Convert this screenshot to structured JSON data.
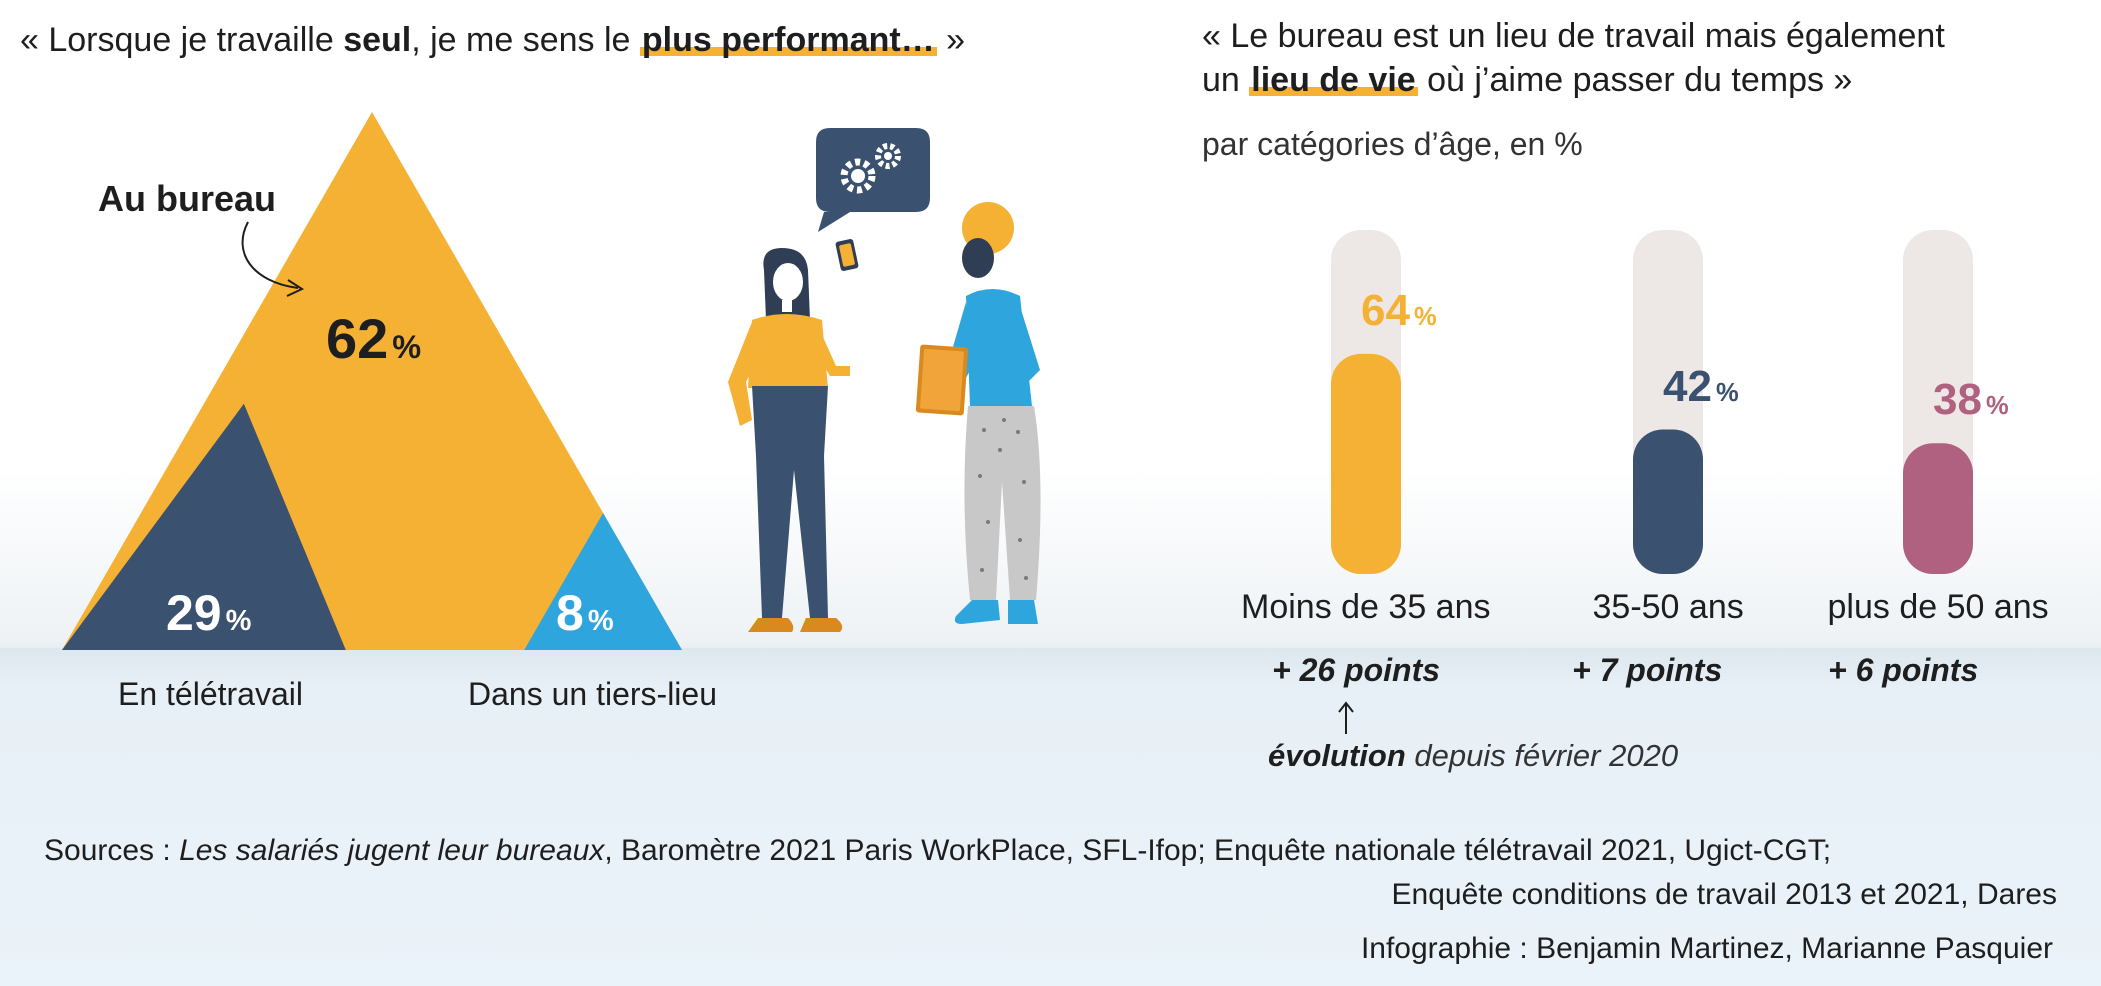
{
  "left_panel": {
    "quote_open": "« Lorsque je travaille ",
    "quote_bold": "seul",
    "quote_mid": ", je me sens le ",
    "quote_highlight": "plus performant…",
    "quote_close": " »",
    "callout_label": "Au bureau",
    "label_left": "En télétravail",
    "label_right": "Dans un tiers-lieu"
  },
  "right_panel": {
    "quote_line1": "« Le bureau est un lieu de travail mais également",
    "quote_line2_pre": "un ",
    "quote_line2_highlight": "lieu de vie",
    "quote_line2_post": " où j’aime passer du temps »",
    "subtitle": "par catégories d’âge, en %",
    "note_bold": "évolution",
    "note_rest": " depuis février 2020"
  },
  "chart_data": [
    {
      "type": "pie",
      "categories": [
        "Au bureau",
        "En télétravail",
        "Dans un tiers-lieu"
      ],
      "values": [
        62,
        29,
        8
      ],
      "value_labels": [
        "62",
        "29",
        "8"
      ],
      "unit": "%",
      "colors": [
        "#f5b133",
        "#3b5170",
        "#2fa5dd"
      ]
    },
    {
      "type": "bar",
      "categories": [
        "Moins de 35 ans",
        "35-50 ans",
        "plus de 50 ans"
      ],
      "values": [
        64,
        42,
        38
      ],
      "value_labels": [
        "64",
        "42",
        "38"
      ],
      "unit": "%",
      "ylim": [
        0,
        100
      ],
      "changes": [
        "+ 26 points",
        "+ 7 points",
        "+ 6 points"
      ],
      "colors": [
        "#f5b133",
        "#3b5170",
        "#b0617f"
      ],
      "track_color": "#ede8e6",
      "grid": false
    }
  ],
  "footer": {
    "sources_label": "Sources : ",
    "sources_title": "Les salariés jugent leur bureaux",
    "sources_rest": ", Baromètre 2021 Paris WorkPlace, SFL-Ifop; Enquête nationale télétravail 2021, Ugict-CGT;",
    "sources_line2": "Enquête conditions de travail 2013 et 2021, Dares",
    "credits": "Infographie : Benjamin Martinez, Marianne Pasquier"
  },
  "colors": {
    "orange": "#f5b133",
    "navy": "#3b5170",
    "sky": "#2fa5dd",
    "mauve": "#b0617f",
    "track": "#ede8e6"
  },
  "icons": [
    "gear-speech-bubble-icon",
    "arrow-curved-icon",
    "arrow-up-icon",
    "people-illustration"
  ]
}
